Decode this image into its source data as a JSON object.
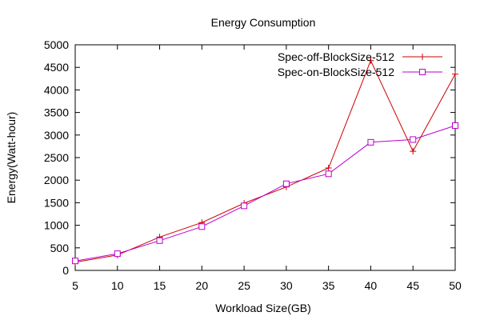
{
  "chart_data": {
    "type": "line",
    "title": "Energy Consumption",
    "xlabel": "Workload Size(GB)",
    "ylabel": "Energy(Watt-hour)",
    "xlim": [
      5,
      50
    ],
    "ylim": [
      0,
      5000
    ],
    "x_ticks": [
      5,
      10,
      15,
      20,
      25,
      30,
      35,
      40,
      45,
      50
    ],
    "y_ticks": [
      0,
      500,
      1000,
      1500,
      2000,
      2500,
      3000,
      3500,
      4000,
      4500,
      5000
    ],
    "grid": false,
    "legend_position": "top-right",
    "x": [
      5,
      10,
      15,
      20,
      25,
      30,
      35,
      40,
      45,
      50
    ],
    "series": [
      {
        "name": "Spec-off-BlockSize-512",
        "marker": "plus",
        "color": "#cc0000",
        "values": [
          180,
          340,
          740,
          1060,
          1490,
          1850,
          2270,
          4650,
          2640,
          4350
        ]
      },
      {
        "name": "Spec-on-BlockSize-512",
        "marker": "open-square",
        "color": "#bb00cc",
        "values": [
          210,
          370,
          660,
          970,
          1430,
          1920,
          2140,
          2840,
          2900,
          3210
        ]
      }
    ]
  }
}
